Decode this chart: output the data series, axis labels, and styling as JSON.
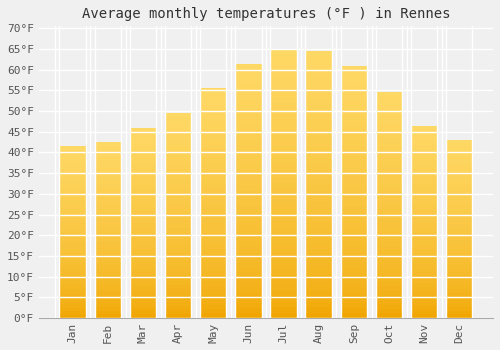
{
  "months": [
    "Jan",
    "Feb",
    "Mar",
    "Apr",
    "May",
    "Jun",
    "Jul",
    "Aug",
    "Sep",
    "Oct",
    "Nov",
    "Dec"
  ],
  "values": [
    41.5,
    42.5,
    46.0,
    49.5,
    55.5,
    61.5,
    65.0,
    64.5,
    61.0,
    54.5,
    46.5,
    43.0
  ],
  "bar_color_top": "#FFD966",
  "bar_color_bottom": "#F0A500",
  "bar_edge_color": "#E8A000",
  "title": "Average monthly temperatures (°F ) in Rennes",
  "ylim": [
    0,
    70
  ],
  "ytick_step": 5,
  "background_color": "#f0f0f0",
  "grid_color": "#ffffff",
  "title_fontsize": 10,
  "tick_fontsize": 8,
  "font_family": "monospace"
}
